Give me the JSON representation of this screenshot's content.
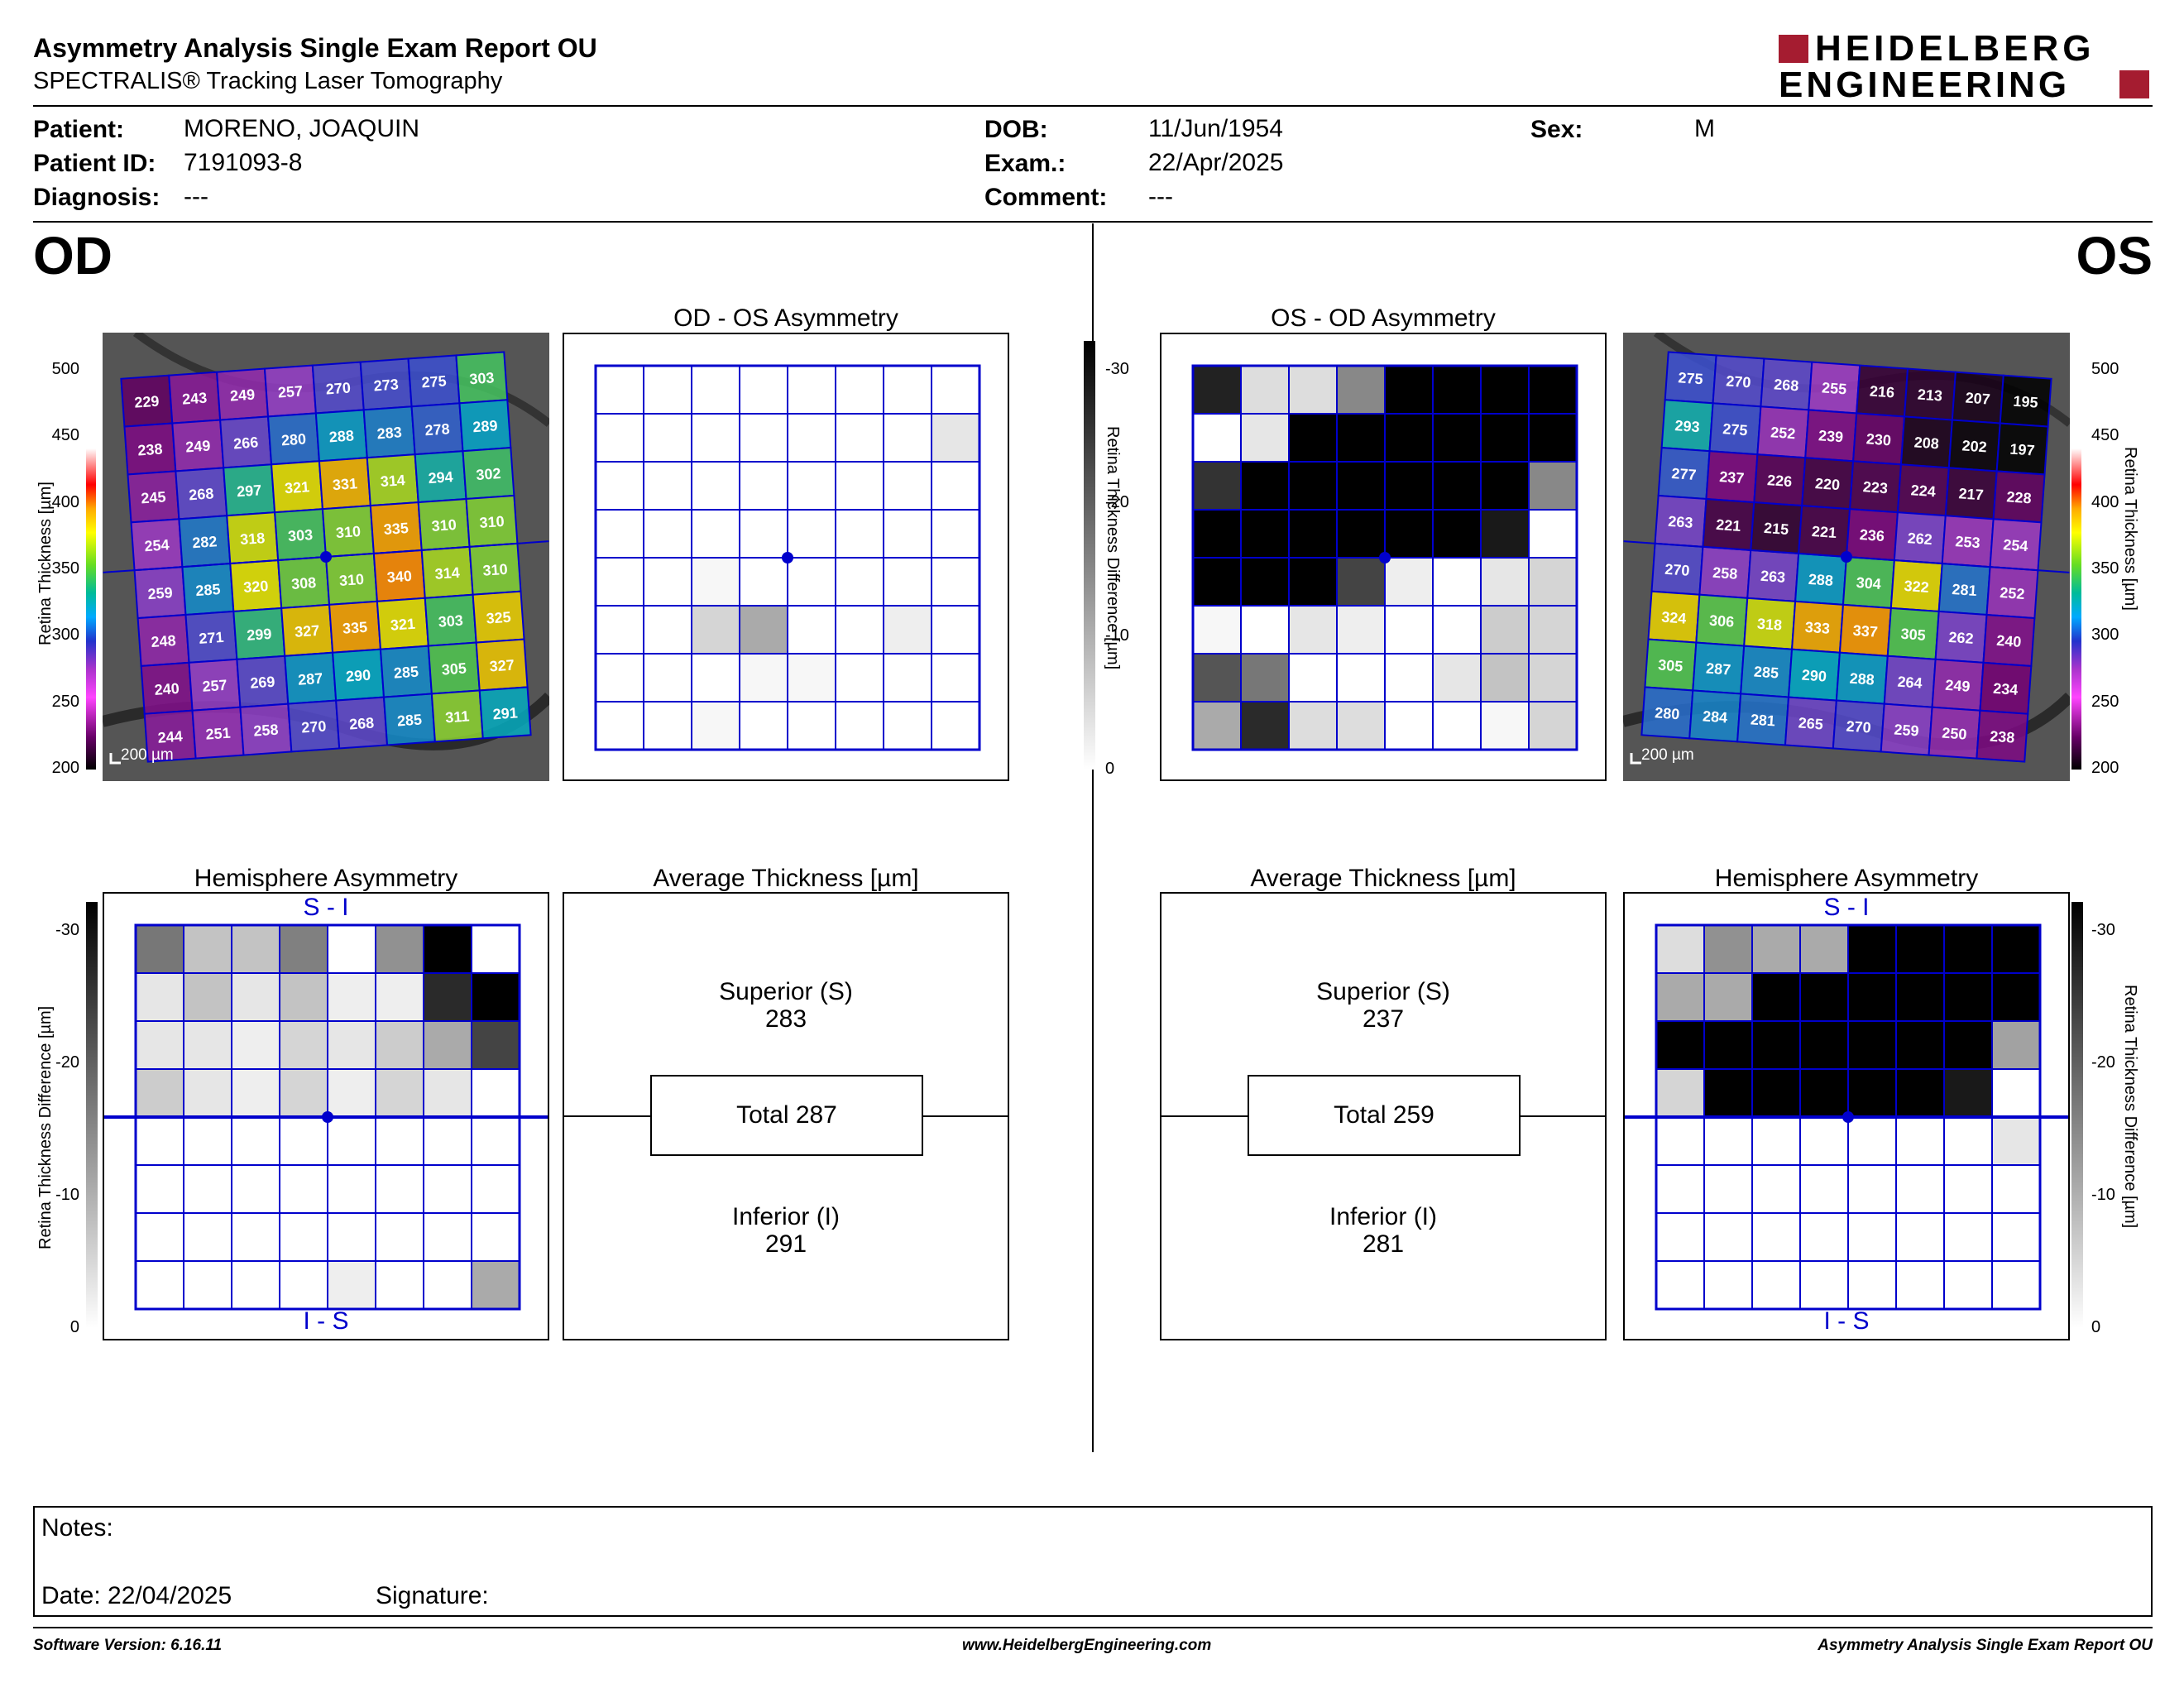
{
  "header": {
    "title": "Asymmetry Analysis Single Exam Report OU",
    "subtitle": "SPECTRALIS® Tracking Laser Tomography",
    "logo_line1": "HEIDELBERG",
    "logo_line2": "ENGINEERING"
  },
  "patient": {
    "patient_label": "Patient:",
    "patient_value": "MORENO, JOAQUIN",
    "id_label": "Patient ID:",
    "id_value": "7191093-8",
    "diagnosis_label": "Diagnosis:",
    "diagnosis_value": "---",
    "dob_label": "DOB:",
    "dob_value": "11/Jun/1954",
    "exam_label": "Exam.:",
    "exam_value": "22/Apr/2025",
    "comment_label": "Comment:",
    "comment_value": "---",
    "sex_label": "Sex:",
    "sex_value": "M"
  },
  "eyes": {
    "left": "OD",
    "right": "OS"
  },
  "scales": {
    "thickness_label": "Retina Thickness [µm]",
    "thickness_ticks": [
      "500",
      "450",
      "400",
      "350",
      "300",
      "250",
      "200"
    ],
    "difference_label": "Retina Thickness Difference [µm]",
    "difference_ticks": [
      "-30",
      "-20",
      "-10",
      "0"
    ],
    "scalebar": "200 µm"
  },
  "od": {
    "asym_title": "OD - OS Asymmetry",
    "hemi_title": "Hemisphere Asymmetry",
    "hemi_top": "S - I",
    "hemi_bottom": "I - S",
    "avg_title": "Average Thickness [µm]",
    "superior_label": "Superior (S)",
    "superior_value": "283",
    "total": "Total 287",
    "inferior_label": "Inferior (I)",
    "inferior_value": "291",
    "thickness_grid": [
      [
        229,
        243,
        249,
        257,
        270,
        273,
        275,
        303
      ],
      [
        238,
        249,
        266,
        280,
        288,
        283,
        278,
        289
      ],
      [
        245,
        268,
        297,
        321,
        331,
        314,
        294,
        302
      ],
      [
        254,
        282,
        318,
        303,
        310,
        335,
        310,
        310
      ],
      [
        259,
        285,
        320,
        308,
        310,
        340,
        314,
        310
      ],
      [
        248,
        271,
        299,
        327,
        335,
        321,
        303,
        325
      ],
      [
        240,
        257,
        269,
        287,
        290,
        285,
        305,
        327
      ],
      [
        244,
        251,
        258,
        270,
        268,
        285,
        311,
        291
      ]
    ],
    "asym_grid": [
      [
        0,
        0,
        0,
        0,
        0,
        0,
        0,
        0
      ],
      [
        0,
        0,
        0,
        0,
        0,
        0,
        0,
        3
      ],
      [
        0,
        0,
        0,
        0,
        0,
        0,
        0,
        0
      ],
      [
        0,
        0,
        0,
        0,
        0,
        0,
        0,
        0
      ],
      [
        0,
        0,
        1,
        0,
        0,
        0,
        0,
        0
      ],
      [
        0,
        0,
        5,
        10,
        0,
        0,
        2,
        0
      ],
      [
        0,
        0,
        0,
        1,
        1,
        0,
        0,
        0
      ],
      [
        0,
        0,
        1,
        0,
        0,
        0,
        0,
        0
      ]
    ],
    "hemi_grid": [
      [
        16,
        7,
        7,
        15,
        0,
        13,
        30,
        0
      ],
      [
        3,
        7,
        3,
        7,
        2,
        2,
        25,
        30
      ],
      [
        3,
        3,
        2,
        5,
        3,
        6,
        10,
        22
      ],
      [
        6,
        3,
        2,
        5,
        2,
        5,
        3,
        0
      ]
    ],
    "hemi_lower_grid": [
      [
        0,
        0,
        0,
        0,
        0,
        0,
        0,
        0
      ],
      [
        0,
        0,
        0,
        0,
        0,
        0,
        0,
        0
      ],
      [
        0,
        0,
        0,
        0,
        0,
        0,
        0,
        0
      ],
      [
        0,
        0,
        0,
        0,
        2,
        0,
        0,
        10
      ]
    ]
  },
  "os": {
    "asym_title": "OS - OD Asymmetry",
    "hemi_title": "Hemisphere Asymmetry",
    "hemi_top": "S - I",
    "hemi_bottom": "I - S",
    "avg_title": "Average Thickness [µm]",
    "superior_label": "Superior (S)",
    "superior_value": "237",
    "total": "Total 259",
    "inferior_label": "Inferior (I)",
    "inferior_value": "281",
    "thickness_grid": [
      [
        275,
        270,
        268,
        255,
        216,
        213,
        207,
        195
      ],
      [
        293,
        275,
        252,
        239,
        230,
        208,
        202,
        197
      ],
      [
        277,
        237,
        226,
        220,
        223,
        224,
        217,
        228
      ],
      [
        263,
        221,
        215,
        221,
        236,
        262,
        253,
        254
      ],
      [
        270,
        258,
        263,
        288,
        304,
        322,
        281,
        252
      ],
      [
        324,
        306,
        318,
        333,
        337,
        305,
        262,
        240
      ],
      [
        305,
        287,
        285,
        290,
        288,
        264,
        249,
        234
      ],
      [
        280,
        284,
        281,
        265,
        270,
        259,
        250,
        238
      ]
    ],
    "asym_grid": [
      [
        26,
        4,
        4,
        14,
        30,
        30,
        30,
        30
      ],
      [
        0,
        3,
        30,
        30,
        30,
        30,
        30,
        30
      ],
      [
        24,
        30,
        30,
        30,
        30,
        30,
        30,
        14
      ],
      [
        30,
        30,
        30,
        30,
        30,
        30,
        27,
        0
      ],
      [
        30,
        30,
        30,
        22,
        2,
        0,
        3,
        5
      ],
      [
        1,
        0,
        3,
        2,
        0,
        0,
        6,
        5
      ],
      [
        20,
        16,
        0,
        0,
        0,
        3,
        7,
        5
      ],
      [
        10,
        25,
        4,
        4,
        0,
        0,
        1,
        5
      ]
    ],
    "hemi_grid": [
      [
        4,
        13,
        10,
        10,
        30,
        30,
        30,
        30
      ],
      [
        10,
        10,
        30,
        30,
        30,
        30,
        30,
        30
      ],
      [
        30,
        30,
        30,
        30,
        30,
        30,
        30,
        11
      ],
      [
        5,
        30,
        30,
        30,
        30,
        30,
        27,
        0
      ]
    ],
    "hemi_lower_grid": [
      [
        0,
        0,
        0,
        0,
        0,
        0,
        0,
        3
      ],
      [
        0,
        0,
        0,
        0,
        0,
        0,
        0,
        0
      ],
      [
        0,
        0,
        0,
        0,
        0,
        0,
        0,
        0
      ],
      [
        0,
        0,
        0,
        0,
        0,
        0,
        0,
        0
      ]
    ]
  },
  "notes": {
    "notes_label": "Notes:",
    "date_label": "Date: 22/04/2025",
    "signature_label": "Signature:"
  },
  "footer": {
    "software": "Software Version: 6.16.11",
    "website": "www.HeidelbergEngineering.com",
    "report": "Asymmetry Analysis Single Exam Report OU"
  },
  "colors": {
    "grid_blue": "#0000cc",
    "logo_red": "#a51c30"
  }
}
